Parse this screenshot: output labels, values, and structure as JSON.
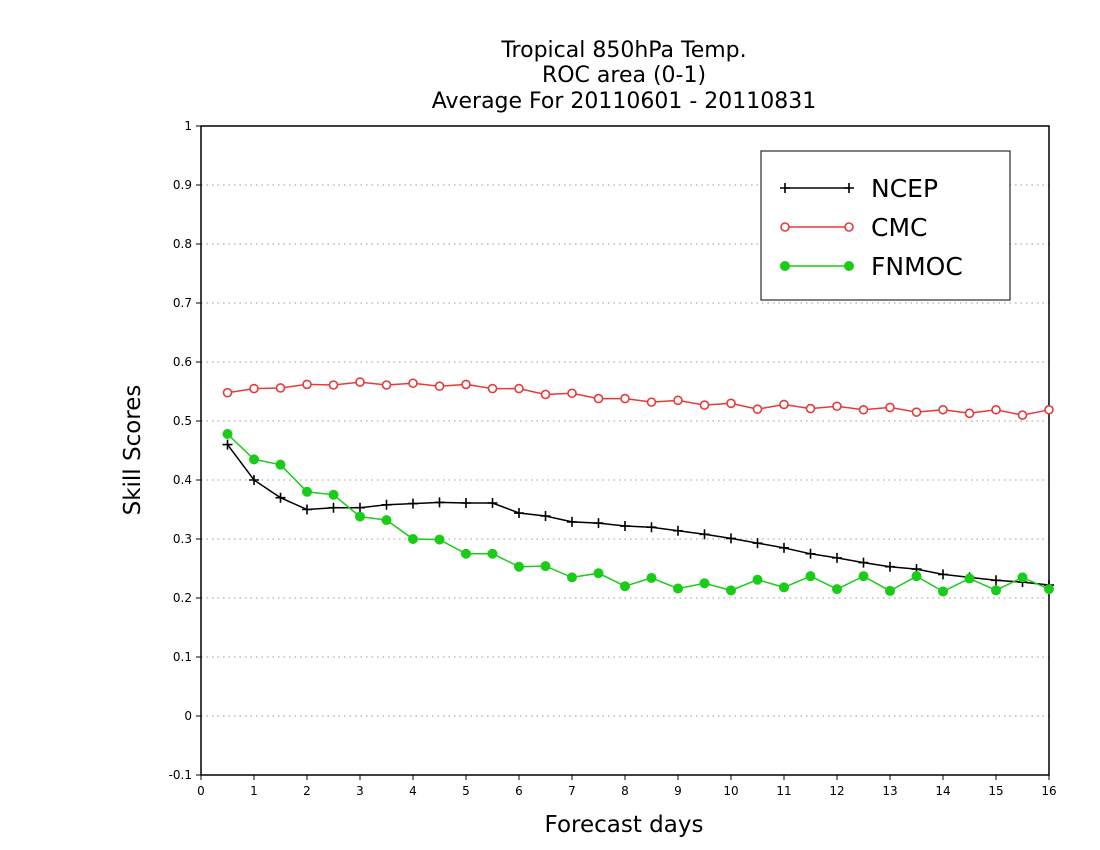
{
  "chart_data": {
    "type": "line",
    "title_lines": [
      "Tropical 850hPa Temp.",
      "ROC area (0-1)",
      "Average For 20110601 - 20110831"
    ],
    "xlabel": "Forecast days",
    "ylabel": "Skill Scores",
    "xlim": [
      0,
      16
    ],
    "ylim": [
      -0.1,
      1
    ],
    "x_ticks": [
      0,
      1,
      2,
      3,
      4,
      5,
      6,
      7,
      8,
      9,
      10,
      11,
      12,
      13,
      14,
      15,
      16
    ],
    "y_ticks": [
      -0.1,
      0,
      0.1,
      0.2,
      0.3,
      0.4,
      0.5,
      0.6,
      0.7,
      0.8,
      0.9,
      1
    ],
    "y_tick_labels": [
      "-0.1",
      "0",
      "0.1",
      "0.2",
      "0.3",
      "0.4",
      "0.5",
      "0.6",
      "0.7",
      "0.8",
      "0.9",
      "1"
    ],
    "grid": "horizontal dotted",
    "legend_position": "top-right",
    "x": [
      0.5,
      1,
      1.5,
      2,
      2.5,
      3,
      3.5,
      4,
      4.5,
      5,
      5.5,
      6,
      6.5,
      7,
      7.5,
      8,
      8.5,
      9,
      9.5,
      10,
      10.5,
      11,
      11.5,
      12,
      12.5,
      13,
      13.5,
      14,
      14.5,
      15,
      15.5,
      16
    ],
    "series": [
      {
        "name": "NCEP",
        "color": "#000000",
        "marker": "plus",
        "values": [
          0.46,
          0.4,
          0.37,
          0.35,
          0.353,
          0.353,
          0.358,
          0.36,
          0.362,
          0.361,
          0.361,
          0.344,
          0.339,
          0.329,
          0.327,
          0.322,
          0.32,
          0.314,
          0.308,
          0.301,
          0.293,
          0.285,
          0.275,
          0.268,
          0.26,
          0.253,
          0.249,
          0.24,
          0.235,
          0.23,
          0.227,
          0.222
        ]
      },
      {
        "name": "CMC",
        "color": "#e8393a",
        "marker": "open-circle",
        "values": [
          0.548,
          0.555,
          0.556,
          0.562,
          0.561,
          0.566,
          0.561,
          0.564,
          0.559,
          0.562,
          0.555,
          0.555,
          0.545,
          0.547,
          0.538,
          0.538,
          0.532,
          0.535,
          0.527,
          0.53,
          0.52,
          0.528,
          0.521,
          0.525,
          0.519,
          0.523,
          0.515,
          0.519,
          0.513,
          0.519,
          0.51,
          0.519
        ]
      },
      {
        "name": "FNMOC",
        "color": "#18cc18",
        "marker": "filled-circle",
        "values": [
          0.478,
          0.435,
          0.426,
          0.38,
          0.375,
          0.338,
          0.332,
          0.3,
          0.299,
          0.275,
          0.275,
          0.253,
          0.254,
          0.235,
          0.242,
          0.22,
          0.234,
          0.216,
          0.225,
          0.213,
          0.231,
          0.218,
          0.237,
          0.215,
          0.237,
          0.212,
          0.237,
          0.211,
          0.233,
          0.213,
          0.235,
          0.215
        ]
      }
    ]
  }
}
